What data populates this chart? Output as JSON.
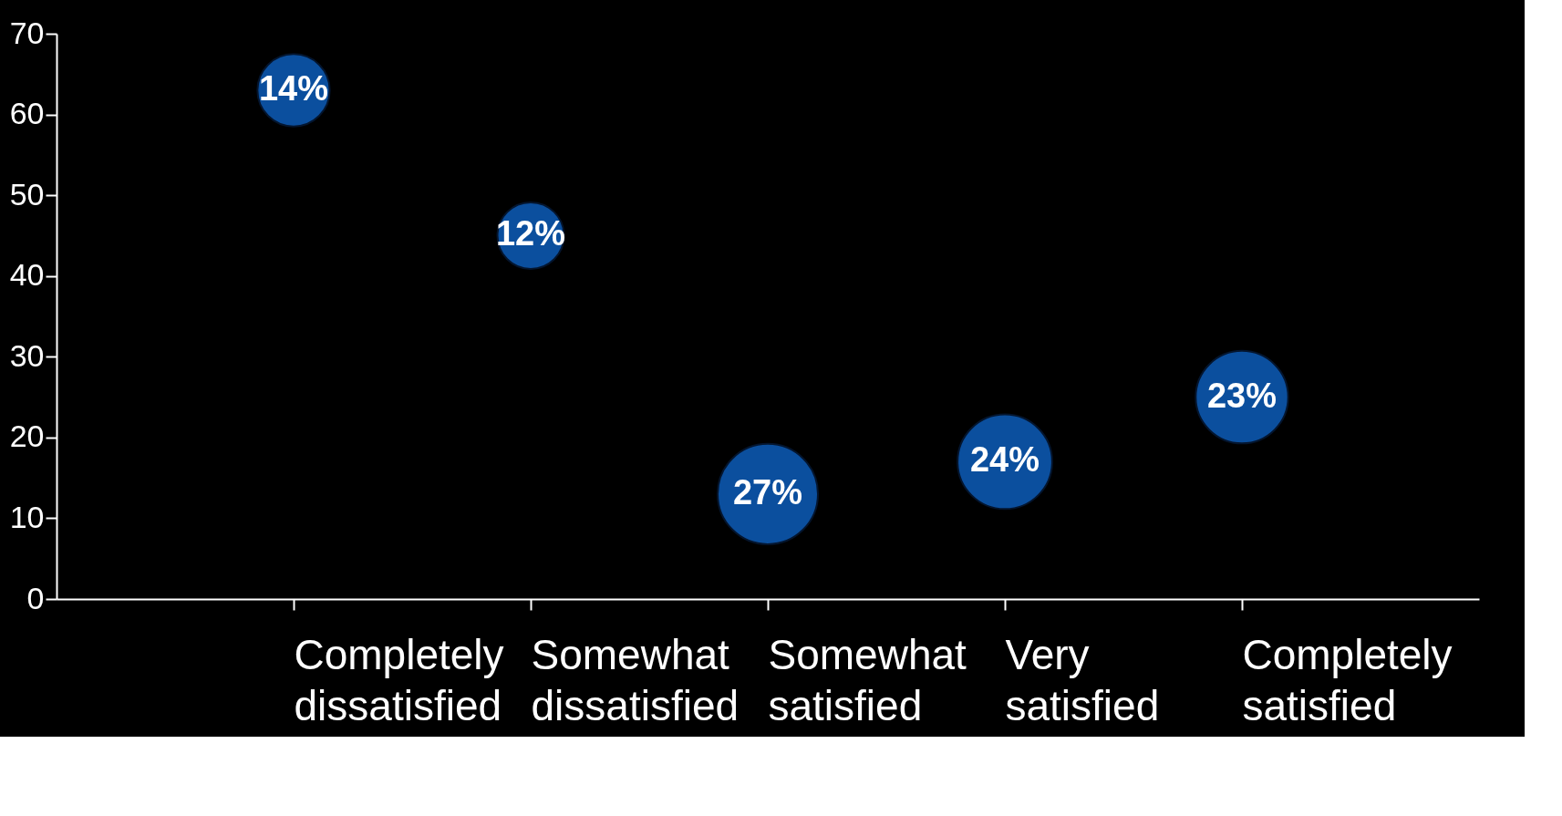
{
  "chart_data": {
    "type": "bubble",
    "categories": [
      "Completely dissatisfied",
      "Somewhat dissatisfied",
      "Somewhat satisfied",
      "Very satisfied",
      "Completely satisfied"
    ],
    "values": [
      63,
      45,
      13,
      17,
      25
    ],
    "sizes": [
      0.52,
      0.44,
      1,
      0.89,
      0.85
    ],
    "annotations": [
      "14%",
      "12%",
      "27%",
      "24%",
      "23%"
    ],
    "color": "#0b4f9e",
    "ylim": [
      0,
      70
    ],
    "yticks": [
      0,
      10,
      20,
      30,
      40,
      50,
      60,
      70
    ],
    "grid": false
  }
}
